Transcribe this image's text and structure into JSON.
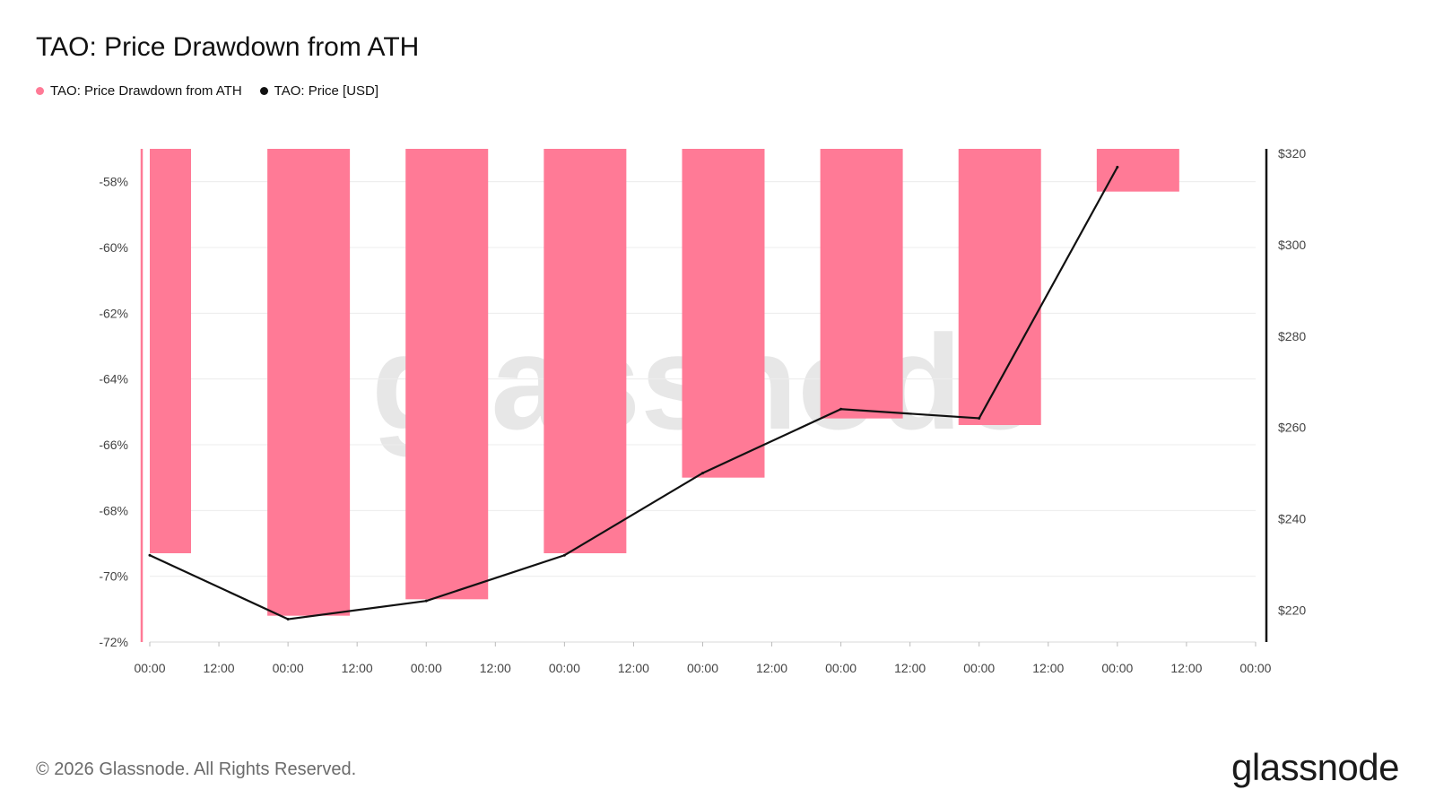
{
  "title": "TAO: Price Drawdown from ATH",
  "legend": [
    {
      "label": "TAO: Price Drawdown from ATH",
      "color": "#ff7a96"
    },
    {
      "label": "TAO: Price [USD]",
      "color": "#111111"
    }
  ],
  "footer": "© 2026 Glassnode. All Rights Reserved.",
  "brand": "glassnode",
  "watermark": "glassnode",
  "chart_data": {
    "type": "bar",
    "x_tick_labels": [
      "00:00",
      "12:00",
      "00:00",
      "12:00",
      "00:00",
      "12:00",
      "00:00",
      "12:00",
      "00:00",
      "12:00",
      "00:00",
      "12:00",
      "00:00",
      "12:00",
      "00:00",
      "12:00",
      "00:00"
    ],
    "left_axis": {
      "ticks": [
        "-58%",
        "-60%",
        "-62%",
        "-64%",
        "-66%",
        "-68%",
        "-70%",
        "-72%"
      ],
      "ylim": [
        -72,
        -57
      ]
    },
    "right_axis": {
      "ticks": [
        "$320",
        "$300",
        "$280",
        "$260",
        "$240",
        "$220"
      ],
      "ylim": [
        213,
        321
      ]
    },
    "series": [
      {
        "name": "TAO: Price Drawdown from ATH",
        "type": "bar",
        "color": "#ff7a96",
        "x_day": [
          0,
          1,
          2,
          3,
          4,
          5,
          6,
          7
        ],
        "values": [
          -69.3,
          -71.2,
          -70.7,
          -69.3,
          -67.0,
          -65.2,
          -65.4,
          -58.3
        ]
      },
      {
        "name": "TAO: Price [USD]",
        "type": "line",
        "color": "#111111",
        "x_day": [
          0,
          1,
          2,
          3,
          4,
          5,
          6,
          7
        ],
        "values": [
          232,
          218,
          222,
          232,
          250,
          264,
          262,
          317
        ]
      }
    ]
  }
}
